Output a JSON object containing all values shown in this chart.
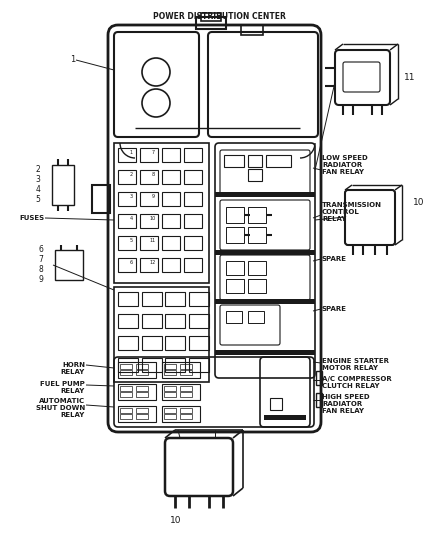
{
  "title": "POWER DISTRIBUTION CENTER",
  "bg_color": "#ffffff",
  "line_color": "#1a1a1a",
  "gray_color": "#888888",
  "dark_gray": "#444444",
  "fig_width": 4.38,
  "fig_height": 5.33,
  "dpi": 100,
  "labels": {
    "title": "POWER DISTRIBUTION CENTER",
    "item1": "1",
    "item2": "2",
    "item3": "3",
    "item4": "4",
    "item5": "5",
    "fuses": "FUSES",
    "item6": "6",
    "item7": "7",
    "item8": "8",
    "item9": "9",
    "horn_relay": "HORN\nRELAY",
    "fuel_pump_relay": "FUEL PUMP\nRELAY",
    "auto_shutdwn_relay": "AUTOMATIC\nSHUT DOWN\nRELAY",
    "low_speed": "LOW SPEED\nRADIATOR\nFAN RELAY",
    "trans_ctrl": "TRANSMISSION\nCONTROL\nRELAY",
    "spare1": "SPARE",
    "spare2": "SPARE",
    "engine_starter": "ENGINE STARTER\nMOTOR RELAY",
    "ac_comp": "A/C COMPRESSOR\nCLUTCH RELAY",
    "high_speed": "HIGH SPEED\nRADIATOR\nFAN RELAY",
    "item10a": "10",
    "item10b": "10",
    "item11": "11"
  }
}
